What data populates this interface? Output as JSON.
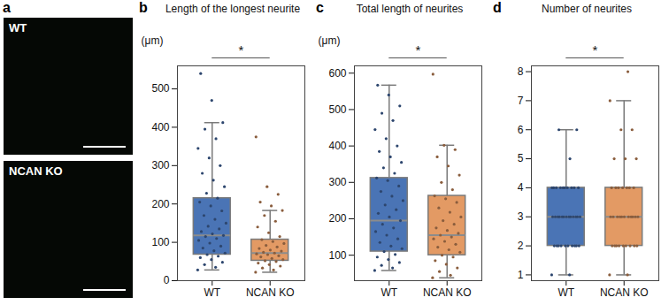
{
  "chart_data": [
    {
      "type": "image",
      "panel_label": "a",
      "images": [
        {
          "label": "WT"
        },
        {
          "label": "NCAN KO"
        }
      ]
    },
    {
      "type": "box",
      "panel_label": "b",
      "title": "Length of the longest neurite",
      "y_label": "(μm)",
      "annotation": "*",
      "categories": [
        "WT",
        "NCAN KO"
      ],
      "colors": [
        "#4a74b5",
        "#e39a64"
      ],
      "boxes": [
        {
          "whislo": 28,
          "q1": 68,
          "med": 118,
          "q3": 215,
          "whishi": 412
        },
        {
          "whislo": 22,
          "q1": 52,
          "med": 72,
          "q3": 107,
          "whishi": 183
        }
      ],
      "points": [
        [
          28,
          35,
          42,
          48,
          55,
          60,
          64,
          68,
          72,
          78,
          85,
          90,
          98,
          105,
          110,
          115,
          118,
          122,
          128,
          135,
          142,
          150,
          160,
          170,
          182,
          195,
          205,
          215,
          228,
          245,
          262,
          280,
          300,
          320,
          345,
          370,
          395,
          412,
          470,
          540
        ],
        [
          22,
          28,
          33,
          38,
          42,
          46,
          50,
          52,
          55,
          58,
          62,
          65,
          68,
          70,
          72,
          74,
          77,
          80,
          84,
          88,
          92,
          97,
          102,
          107,
          115,
          125,
          140,
          155,
          170,
          183,
          195,
          205,
          225,
          245,
          375
        ]
      ],
      "ylim": [
        0,
        560
      ],
      "yticks": [
        0,
        100,
        200,
        300,
        400,
        500
      ]
    },
    {
      "type": "box",
      "panel_label": "c",
      "title": "Total length of neurites",
      "y_label": "(μm)",
      "annotation": "*",
      "categories": [
        "WT",
        "NCAN KO"
      ],
      "colors": [
        "#4a74b5",
        "#e39a64"
      ],
      "boxes": [
        {
          "whislo": 58,
          "q1": 110,
          "med": 195,
          "q3": 312,
          "whishi": 567
        },
        {
          "whislo": 38,
          "q1": 100,
          "med": 155,
          "q3": 263,
          "whishi": 402
        }
      ],
      "points": [
        [
          58,
          65,
          72,
          80,
          88,
          95,
          102,
          110,
          118,
          125,
          135,
          145,
          155,
          165,
          175,
          185,
          195,
          205,
          215,
          225,
          238,
          250,
          262,
          275,
          290,
          305,
          312,
          325,
          340,
          355,
          370,
          385,
          400,
          420,
          445,
          470,
          490,
          510,
          540,
          567
        ],
        [
          38,
          45,
          55,
          65,
          75,
          85,
          95,
          100,
          108,
          115,
          122,
          130,
          138,
          145,
          150,
          155,
          160,
          168,
          175,
          185,
          195,
          205,
          218,
          230,
          245,
          255,
          263,
          280,
          300,
          320,
          345,
          370,
          390,
          402,
          597
        ]
      ],
      "ylim": [
        30,
        620
      ],
      "yticks": [
        100,
        200,
        300,
        400,
        500,
        600
      ]
    },
    {
      "type": "box",
      "panel_label": "d",
      "title": "Number of neurites",
      "annotation": "*",
      "categories": [
        "WT",
        "NCAN KO"
      ],
      "colors": [
        "#4a74b5",
        "#e39a64"
      ],
      "boxes": [
        {
          "whislo": 1,
          "q1": 2,
          "med": 3,
          "q3": 4,
          "whishi": 6
        },
        {
          "whislo": 1,
          "q1": 2,
          "med": 3,
          "q3": 4,
          "whishi": 7
        }
      ],
      "points": [
        [
          1,
          1,
          2,
          2,
          2,
          2,
          2,
          2,
          2,
          2,
          2,
          2,
          3,
          3,
          3,
          3,
          3,
          3,
          3,
          3,
          3,
          3,
          3,
          3,
          3,
          4,
          4,
          4,
          4,
          4,
          4,
          4,
          4,
          4,
          4,
          5,
          6,
          6
        ],
        [
          1,
          1,
          2,
          2,
          2,
          2,
          2,
          2,
          2,
          2,
          2,
          3,
          3,
          3,
          3,
          3,
          3,
          3,
          3,
          3,
          3,
          3,
          4,
          4,
          4,
          4,
          4,
          4,
          4,
          5,
          5,
          5,
          6,
          6,
          7,
          8
        ]
      ],
      "ylim": [
        0.8,
        8.2
      ],
      "yticks": [
        1,
        2,
        3,
        4,
        5,
        6,
        7,
        8
      ]
    }
  ]
}
